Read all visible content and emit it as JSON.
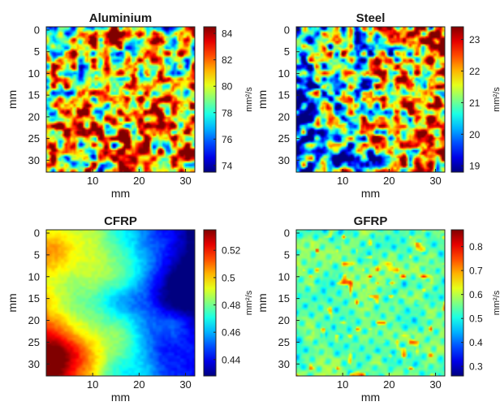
{
  "chart_data": [
    {
      "type": "heatmap",
      "title": "Aluminium",
      "xlabel": "mm",
      "ylabel": "mm",
      "colorbar_label": "mm²/s",
      "colorbar_ticks": [
        "84",
        "82",
        "80",
        "78",
        "76",
        "74"
      ],
      "colorbar_range": [
        73.5,
        84.5
      ],
      "xticks": [
        "10",
        "20",
        "30"
      ],
      "yticks": [
        "0",
        "5",
        "10",
        "15",
        "20",
        "25",
        "30"
      ],
      "xlim": [
        0,
        32
      ],
      "ylim": [
        0,
        32
      ],
      "colormap": "jet",
      "pattern": "fine-mottled",
      "mean": 79.5
    },
    {
      "type": "heatmap",
      "title": "Steel",
      "xlabel": "mm",
      "ylabel": "mm",
      "colorbar_label": "mm²/s",
      "colorbar_ticks": [
        "23",
        "22",
        "21",
        "20",
        "19"
      ],
      "colorbar_range": [
        18.8,
        23.4
      ],
      "xticks": [
        "10",
        "20",
        "30"
      ],
      "yticks": [
        "0",
        "5",
        "10",
        "15",
        "20",
        "25",
        "30"
      ],
      "xlim": [
        0,
        32
      ],
      "ylim": [
        0,
        32
      ],
      "colormap": "jet",
      "pattern": "mottled-left-low",
      "mean": 21.0
    },
    {
      "type": "heatmap",
      "title": "CFRP",
      "xlabel": "mm",
      "ylabel": "mm",
      "colorbar_label": "mm²/s",
      "colorbar_ticks": [
        "0.52",
        "0.5",
        "0.48",
        "0.46",
        "0.44"
      ],
      "colorbar_range": [
        0.428,
        0.535
      ],
      "xticks": [
        "10",
        "20",
        "30"
      ],
      "yticks": [
        "0",
        "5",
        "10",
        "15",
        "20",
        "25",
        "30"
      ],
      "xlim": [
        0,
        32
      ],
      "ylim": [
        0,
        32
      ],
      "colormap": "jet",
      "pattern": "smooth-gradient",
      "mean": 0.48
    },
    {
      "type": "heatmap",
      "title": "GFRP",
      "xlabel": "mm",
      "ylabel": "mm",
      "colorbar_label": "mm²/s",
      "colorbar_ticks": [
        "0.8",
        "0.7",
        "0.6",
        "0.5",
        "0.4",
        "0.3"
      ],
      "colorbar_range": [
        0.26,
        0.87
      ],
      "xticks": [
        "10",
        "20",
        "30"
      ],
      "yticks": [
        "0",
        "5",
        "10",
        "15",
        "20",
        "25",
        "30"
      ],
      "xlim": [
        0,
        32
      ],
      "ylim": [
        0,
        32
      ],
      "colormap": "jet",
      "pattern": "speckled-blobs",
      "mean": 0.52
    }
  ]
}
